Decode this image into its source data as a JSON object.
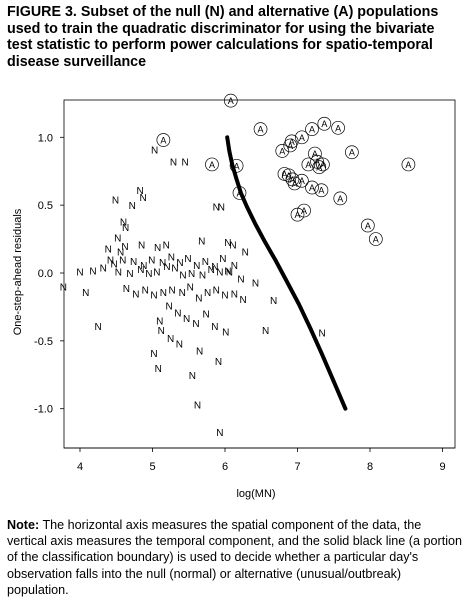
{
  "title": "FIGURE 3. Subset of the null (N) and alternative (A) populations used to train the quadratic discriminator for using the bivariate test statistic to perform power calculations for spatio-temporal disease surveillance",
  "note": {
    "label": "Note:",
    "text": "The horizontal axis measures the spatial component of the data, the vertical axis measures the temporal component, and the solid black line (a portion of the classification boundary) is used to decide whether a particular day's observation falls into the null (normal) or alternative (unusual/outbreak) population."
  },
  "chart_data": {
    "type": "scatter",
    "xlabel": "log(MN)",
    "ylabel": "One-step-ahead residuals",
    "xlim": [
      3.8,
      9.2
    ],
    "ylim": [
      -1.27,
      1.27
    ],
    "xticks": [
      "4",
      "5",
      "6",
      "7",
      "8",
      "9"
    ],
    "yticks": [
      "1.0",
      "0.5",
      "0.0",
      "-0.5",
      "-1.0"
    ],
    "grid": false,
    "series": [
      {
        "name": "N",
        "marker": "N",
        "x": [
          5.03,
          5.29,
          5.45,
          4.83,
          5.88,
          5.95,
          4.72,
          4.49,
          4.87,
          4.6,
          4.63,
          4.52,
          4.39,
          4.56,
          4.62,
          4.85,
          5.07,
          5.19,
          5.68,
          6.04,
          6.11,
          6.28,
          4.42,
          4.47,
          4.59,
          4.74,
          4.88,
          4.99,
          5.14,
          5.26,
          5.38,
          5.49,
          5.61,
          5.73,
          5.86,
          5.97,
          6.13,
          4.0,
          4.18,
          4.32,
          4.53,
          4.69,
          4.84,
          4.95,
          5.06,
          5.2,
          5.31,
          5.42,
          5.54,
          5.69,
          5.81,
          5.93,
          6.06,
          6.22,
          6.42,
          3.77,
          4.08,
          4.64,
          4.77,
          4.9,
          5.02,
          5.15,
          5.27,
          5.41,
          5.52,
          5.64,
          5.76,
          5.88,
          6.0,
          6.25,
          6.67,
          4.25,
          5.1,
          5.23,
          5.35,
          5.47,
          5.6,
          5.74,
          5.86,
          6.01,
          6.56,
          7.34,
          5.12,
          5.25,
          5.37,
          5.65,
          5.91,
          5.08,
          5.02,
          5.55,
          5.93,
          5.62,
          6.13,
          6.04
        ],
        "y": [
          0.91,
          0.82,
          0.82,
          0.61,
          0.49,
          0.49,
          0.5,
          0.54,
          0.56,
          0.38,
          0.34,
          0.26,
          0.18,
          0.16,
          0.2,
          0.21,
          0.19,
          0.21,
          0.24,
          0.23,
          0.21,
          0.16,
          0.1,
          0.07,
          0.1,
          0.09,
          0.06,
          0.1,
          0.08,
          0.12,
          0.08,
          0.11,
          0.06,
          0.09,
          0.05,
          0.11,
          0.06,
          0.01,
          0.02,
          0.04,
          0.01,
          0.0,
          0.03,
          0.0,
          0.01,
          0.05,
          0.04,
          -0.01,
          0.0,
          -0.01,
          0.03,
          0.01,
          0.01,
          -0.04,
          -0.07,
          -0.1,
          -0.14,
          -0.11,
          -0.15,
          -0.12,
          -0.16,
          -0.14,
          -0.12,
          -0.14,
          -0.1,
          -0.18,
          -0.14,
          -0.12,
          -0.16,
          -0.19,
          -0.2,
          -0.39,
          -0.35,
          -0.24,
          -0.29,
          -0.33,
          -0.37,
          -0.3,
          -0.39,
          -0.43,
          -0.42,
          -0.44,
          -0.42,
          -0.48,
          -0.52,
          -0.57,
          -0.65,
          -0.7,
          -0.59,
          -0.75,
          -1.17,
          -0.97,
          -0.15,
          0.02
        ]
      },
      {
        "name": "A",
        "marker": "A",
        "x": [
          6.08,
          5.15,
          6.49,
          7.2,
          7.37,
          7.56,
          6.16,
          5.82,
          6.79,
          6.9,
          6.92,
          7.06,
          7.24,
          7.27,
          7.35,
          7.15,
          7.3,
          6.82,
          6.88,
          6.93,
          6.96,
          7.2,
          7.33,
          7.06,
          7.75,
          8.53,
          7.59,
          6.2,
          7.0,
          7.09,
          7.97,
          8.08
        ],
        "y": [
          1.27,
          0.98,
          1.06,
          1.06,
          1.1,
          1.07,
          0.79,
          0.8,
          0.9,
          0.94,
          0.97,
          1.0,
          0.88,
          0.82,
          0.8,
          0.8,
          0.78,
          0.73,
          0.72,
          0.69,
          0.66,
          0.63,
          0.61,
          0.68,
          0.89,
          0.8,
          0.55,
          0.59,
          0.43,
          0.46,
          0.35,
          0.25
        ]
      }
    ],
    "boundary": {
      "style": "solid black line",
      "x": [
        6.03,
        6.06,
        6.1,
        6.16,
        6.22,
        6.3,
        6.42,
        6.55,
        6.7,
        6.86,
        7.02,
        7.18,
        7.34,
        7.5,
        7.66
      ],
      "y": [
        1.0,
        0.9,
        0.8,
        0.69,
        0.59,
        0.49,
        0.36,
        0.23,
        0.09,
        -0.07,
        -0.23,
        -0.41,
        -0.6,
        -0.8,
        -1.0
      ]
    }
  }
}
